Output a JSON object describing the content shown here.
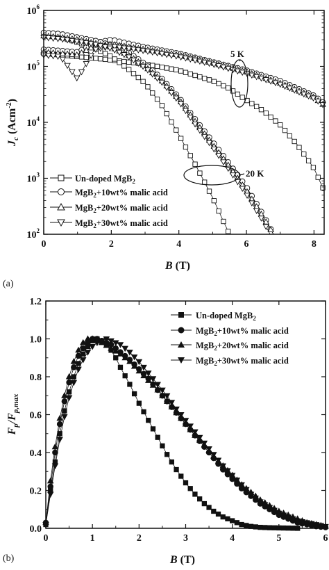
{
  "chart_data": [
    {
      "type": "scatter",
      "panel_label": "(a)",
      "xlabel": "B",
      "xlabel_unit": "(T)",
      "ylabel": "J",
      "ylabel_sub": "c",
      "ylabel_unit": "(Acm",
      "ylabel_unit_sup": "-2",
      "ylabel_unit_close": ")",
      "xlim": [
        0,
        8.3
      ],
      "ylim": [
        100,
        1000000
      ],
      "yscale": "log",
      "x_ticks": [
        "0",
        "2",
        "4",
        "6",
        "8"
      ],
      "y_ticks": [
        {
          "base": "10",
          "exp": "2"
        },
        {
          "base": "10",
          "exp": "3"
        },
        {
          "base": "10",
          "exp": "4"
        },
        {
          "base": "10",
          "exp": "5"
        },
        {
          "base": "10",
          "exp": "6"
        }
      ],
      "legend_position": "bottom-left",
      "annotations": [
        {
          "text": "5 K",
          "x": 5.7,
          "y": 160000
        },
        {
          "text": "20 K",
          "x": 6.8,
          "y": 1000
        }
      ],
      "series": [
        {
          "name": "Un-doped MgB",
          "name_sub": "2",
          "marker": "square",
          "curves": [
            {
              "temperature": "5 K",
              "x": [
                0,
                0.5,
                1,
                1.5,
                2,
                3,
                4,
                5,
                5.5,
                6,
                6.5,
                7,
                7.5,
                8,
                8.3
              ],
              "y": [
                170000,
                160000,
                150000,
                140000,
                130000,
                110000,
                85000,
                55000,
                40000,
                25000,
                16000,
                9000,
                4000,
                1500,
                600
              ]
            },
            {
              "temperature": "20 K",
              "x": [
                0,
                0.5,
                1,
                1.5,
                2,
                2.5,
                3,
                3.5,
                4,
                4.5,
                5,
                5.3,
                5.5
              ],
              "y": [
                380000,
                330000,
                270000,
                210000,
                150000,
                90000,
                50000,
                20000,
                6000,
                1700,
                450,
                180,
                100
              ]
            }
          ]
        },
        {
          "name": "MgB",
          "name_sub": "2",
          "name_suffix": "+10wt% malic acid",
          "marker": "circle",
          "curves": [
            {
              "temperature": "5 K",
              "x": [
                0,
                0.5,
                1,
                1.5,
                2,
                3,
                4,
                5,
                6,
                7,
                8,
                8.3
              ],
              "y": [
                200000,
                190000,
                180000,
                260000,
                300000,
                220000,
                170000,
                120000,
                85000,
                55000,
                30000,
                22000
              ]
            },
            {
              "temperature": "20 K",
              "x": [
                0,
                0.5,
                1,
                1.5,
                2,
                2.5,
                3,
                3.5,
                4,
                4.5,
                5,
                5.5,
                6,
                6.5,
                6.8
              ],
              "y": [
                400000,
                380000,
                330000,
                290000,
                240000,
                180000,
                110000,
                60000,
                28000,
                11000,
                4500,
                1800,
                700,
                220,
                100
              ]
            }
          ]
        },
        {
          "name": "MgB",
          "name_sub": "2",
          "name_suffix": "+20wt% malic acid",
          "marker": "triangle-up",
          "curves": [
            {
              "temperature": "5 K",
              "x": [
                0,
                0.5,
                1,
                1.5,
                2,
                3,
                4,
                5,
                6,
                7,
                8,
                8.3
              ],
              "y": [
                180000,
                170000,
                160000,
                230000,
                250000,
                200000,
                160000,
                115000,
                80000,
                50000,
                28000,
                20000
              ]
            },
            {
              "temperature": "20 K",
              "x": [
                0,
                0.5,
                1,
                1.5,
                2,
                2.5,
                3,
                3.5,
                4,
                4.5,
                5,
                5.5,
                6,
                6.5,
                6.8
              ],
              "y": [
                350000,
                330000,
                300000,
                260000,
                220000,
                160000,
                100000,
                55000,
                26000,
                10000,
                4000,
                1600,
                600,
                200,
                100
              ]
            }
          ]
        },
        {
          "name": "MgB",
          "name_sub": "2",
          "name_suffix": "+30wt% malic acid",
          "marker": "triangle-down",
          "curves": [
            {
              "temperature": "5 K",
              "x": [
                0,
                0.5,
                1,
                1.5,
                2,
                3,
                4,
                5,
                6,
                7,
                8,
                8.3
              ],
              "y": [
                160000,
                150000,
                60000,
                200000,
                230000,
                190000,
                150000,
                110000,
                75000,
                48000,
                27000,
                20000
              ]
            },
            {
              "temperature": "20 K",
              "x": [
                0,
                0.5,
                1,
                1.5,
                2,
                2.5,
                3,
                3.5,
                4,
                4.5,
                5,
                5.5,
                6,
                6.5,
                6.7
              ],
              "y": [
                330000,
                310000,
                280000,
                250000,
                210000,
                150000,
                95000,
                52000,
                24000,
                9000,
                3600,
                1400,
                520,
                170,
                100
              ]
            }
          ]
        }
      ]
    },
    {
      "type": "scatter",
      "panel_label": "(b)",
      "xlabel": "B",
      "xlabel_unit": "(T)",
      "ylabel": "F",
      "ylabel_sub": "p",
      "ylabel_slash": "/F",
      "ylabel_sub2": "p,max",
      "xlim": [
        0,
        6
      ],
      "ylim": [
        0,
        1.2
      ],
      "x_ticks": [
        "0",
        "1",
        "2",
        "3",
        "4",
        "5",
        "6"
      ],
      "y_ticks": [
        "0.0",
        "0.2",
        "0.4",
        "0.6",
        "0.8",
        "1.0",
        "1.2"
      ],
      "legend_position": "top-right",
      "series": [
        {
          "name": "Un-doped MgB",
          "name_sub": "2",
          "marker": "square-filled",
          "x": [
            0,
            0.1,
            0.2,
            0.3,
            0.4,
            0.5,
            0.6,
            0.7,
            0.8,
            0.9,
            1.0,
            1.1,
            1.2,
            1.3,
            1.4,
            1.5,
            1.6,
            1.8,
            2.0,
            2.2,
            2.4,
            2.6,
            2.8,
            3.0,
            3.2,
            3.4,
            3.6,
            3.8,
            4.0,
            4.2,
            4.4,
            4.6,
            4.8,
            5.0,
            5.2,
            5.4
          ],
          "y": [
            0.02,
            0.2,
            0.35,
            0.5,
            0.62,
            0.72,
            0.8,
            0.87,
            0.92,
            0.96,
            0.99,
            1.0,
            0.99,
            0.97,
            0.94,
            0.9,
            0.85,
            0.76,
            0.66,
            0.57,
            0.48,
            0.39,
            0.31,
            0.24,
            0.18,
            0.13,
            0.09,
            0.06,
            0.04,
            0.02,
            0.01,
            0.005,
            0.003,
            0.002,
            0.001,
            0.0
          ]
        },
        {
          "name": "MgB",
          "name_sub": "2",
          "name_suffix": "+10wt% malic acid",
          "marker": "circle-filled",
          "x": [
            0,
            0.1,
            0.2,
            0.3,
            0.4,
            0.5,
            0.6,
            0.7,
            0.8,
            0.9,
            1.0,
            1.1,
            1.2,
            1.4,
            1.6,
            1.8,
            2.0,
            2.2,
            2.4,
            2.6,
            2.8,
            3.0,
            3.2,
            3.4,
            3.6,
            3.8,
            4.0,
            4.2,
            4.4,
            4.6,
            4.8,
            5.0,
            5.2,
            5.4,
            5.6,
            5.8,
            6.0
          ],
          "y": [
            0.03,
            0.22,
            0.4,
            0.55,
            0.67,
            0.77,
            0.85,
            0.91,
            0.95,
            0.98,
            1.0,
            1.0,
            0.99,
            0.97,
            0.93,
            0.89,
            0.84,
            0.79,
            0.73,
            0.67,
            0.61,
            0.55,
            0.49,
            0.43,
            0.37,
            0.31,
            0.26,
            0.21,
            0.17,
            0.13,
            0.1,
            0.07,
            0.05,
            0.03,
            0.02,
            0.01,
            0.005
          ]
        },
        {
          "name": "MgB",
          "name_sub": "2",
          "name_suffix": "+20wt% malic acid",
          "marker": "triangle-up-filled",
          "x": [
            0,
            0.1,
            0.2,
            0.3,
            0.4,
            0.5,
            0.6,
            0.7,
            0.8,
            0.9,
            1.0,
            1.1,
            1.2,
            1.4,
            1.6,
            1.8,
            2.0,
            2.2,
            2.4,
            2.6,
            2.8,
            3.0,
            3.2,
            3.4,
            3.6,
            3.8,
            4.0,
            4.2,
            4.4,
            4.6,
            4.8,
            5.0,
            5.2,
            5.4,
            5.6,
            5.8,
            6.0
          ],
          "y": [
            0.03,
            0.25,
            0.43,
            0.58,
            0.7,
            0.8,
            0.88,
            0.94,
            0.98,
            1.0,
            1.0,
            0.99,
            0.98,
            0.95,
            0.92,
            0.88,
            0.83,
            0.78,
            0.73,
            0.67,
            0.61,
            0.55,
            0.49,
            0.44,
            0.38,
            0.33,
            0.28,
            0.23,
            0.19,
            0.15,
            0.12,
            0.09,
            0.07,
            0.05,
            0.03,
            0.02,
            0.01
          ]
        },
        {
          "name": "MgB",
          "name_sub": "2",
          "name_suffix": "+30wt% malic acid",
          "marker": "triangle-down-filled",
          "x": [
            0,
            0.1,
            0.2,
            0.3,
            0.4,
            0.5,
            0.6,
            0.7,
            0.8,
            0.9,
            1.0,
            1.1,
            1.2,
            1.3,
            1.4,
            1.6,
            1.8,
            2.0,
            2.2,
            2.4,
            2.6,
            2.8,
            3.0,
            3.2,
            3.4,
            3.6,
            3.8,
            4.0,
            4.2,
            4.4,
            4.6,
            4.8,
            5.0,
            5.2,
            5.4,
            5.6,
            5.8,
            6.0
          ],
          "y": [
            0.02,
            0.18,
            0.33,
            0.47,
            0.59,
            0.69,
            0.77,
            0.84,
            0.89,
            0.93,
            0.96,
            0.98,
            0.99,
            1.0,
            0.99,
            0.97,
            0.93,
            0.88,
            0.82,
            0.76,
            0.7,
            0.63,
            0.57,
            0.51,
            0.45,
            0.39,
            0.33,
            0.28,
            0.23,
            0.18,
            0.14,
            0.11,
            0.08,
            0.06,
            0.04,
            0.03,
            0.02,
            0.01
          ]
        }
      ]
    }
  ]
}
